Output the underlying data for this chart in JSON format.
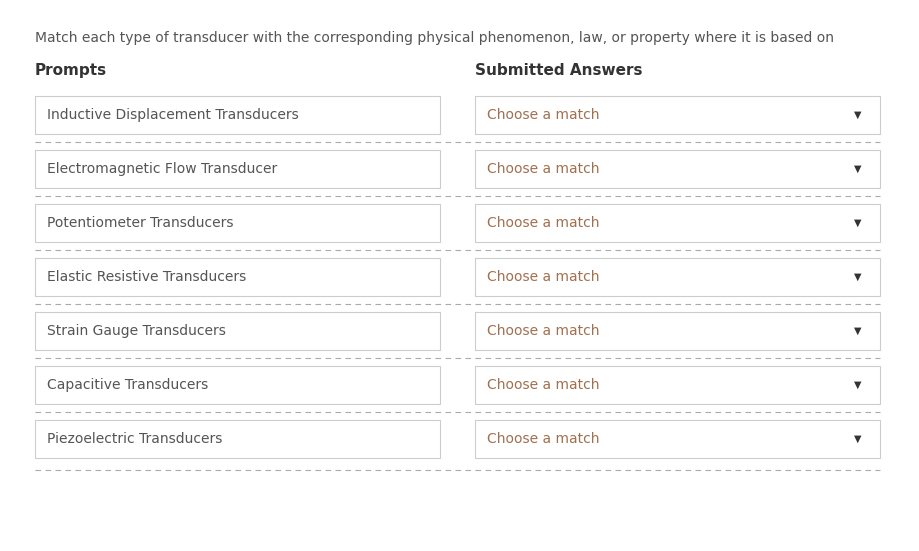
{
  "title": "Match each type of transducer with the corresponding physical phenomenon, law, or property where it is based on",
  "prompts_label": "Prompts",
  "answers_label": "Submitted Answers",
  "items": [
    "Inductive Displacement Transducers",
    "Electromagnetic Flow Transducer",
    "Potentiometer Transducers",
    "Elastic Resistive Transducers",
    "Strain Gauge Transducers",
    "Capacitive Transducers",
    "Piezoelectric Transducers"
  ],
  "dropdown_text": "Choose a match",
  "background_color": "#ffffff",
  "box_bg_color": "#ffffff",
  "box_border_color": "#cccccc",
  "separator_color": "#aaaaaa",
  "title_color": "#555555",
  "label_color": "#333333",
  "item_text_color": "#555555",
  "dropdown_text_color": "#a07050",
  "dropdown_arrow_color": "#333333",
  "title_fontsize": 10.0,
  "label_fontsize": 11.0,
  "item_fontsize": 10.0,
  "dropdown_fontsize": 10.0
}
